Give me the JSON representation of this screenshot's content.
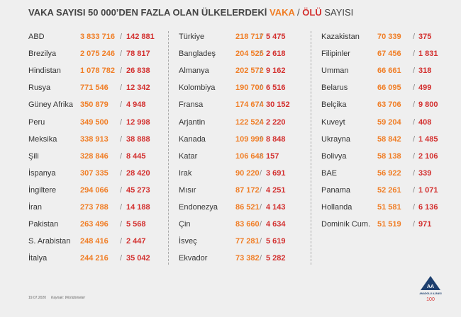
{
  "header": {
    "title": "VAKA SAYISI 50 000’DEN FAZLA OLAN ÜLKELERDEKİ",
    "cases_word": "VAKA",
    "slash": "/",
    "deaths_word": "ÖLÜ",
    "suffix": "SAYISI"
  },
  "table": {
    "separator": "/",
    "columns": [
      [
        [
          "ABD",
          "3 833 716",
          "142 881"
        ],
        [
          "Brezilya",
          "2 075 246",
          "78 817"
        ],
        [
          "Hindistan",
          "1 078 782",
          "26 838"
        ],
        [
          "Rusya",
          "771 546",
          "12 342"
        ],
        [
          "Güney Afrika",
          "350 879",
          "4 948"
        ],
        [
          "Peru",
          "349 500",
          "12 998"
        ],
        [
          "Meksika",
          "338 913",
          "38 888"
        ],
        [
          "Şili",
          "328 846",
          "8 445"
        ],
        [
          "İspanya",
          "307 335",
          "28 420"
        ],
        [
          "İngiltere",
          "294 066",
          "45 273"
        ],
        [
          "İran",
          "273 788",
          "14 188"
        ],
        [
          "Pakistan",
          "263 496",
          "5 568"
        ],
        [
          "S. Arabistan",
          "248 416",
          "2 447"
        ],
        [
          "İtalya",
          "244 216",
          "35 042"
        ]
      ],
      [
        [
          "Türkiye",
          "218 717",
          "5 475"
        ],
        [
          "Bangladeş",
          "204 525",
          "2 618"
        ],
        [
          "Almanya",
          "202 572",
          "9 162"
        ],
        [
          "Kolombiya",
          "190 700",
          "6 516"
        ],
        [
          "Fransa",
          "174 674",
          "30 152"
        ],
        [
          "Arjantin",
          "122 524",
          "2 220"
        ],
        [
          "Kanada",
          "109 999",
          "8 848"
        ],
        [
          "Katar",
          "106 648",
          "157"
        ],
        [
          "Irak",
          "90 220",
          "3 691"
        ],
        [
          "Mısır",
          "87 172",
          "4 251"
        ],
        [
          "Endonezya",
          "86 521",
          "4 143"
        ],
        [
          "Çin",
          "83 660",
          "4 634"
        ],
        [
          "İsveç",
          "77 281",
          "5 619"
        ],
        [
          "Ekvador",
          "73 382",
          "5 282"
        ]
      ],
      [
        [
          "Kazakistan",
          "70 339",
          "375"
        ],
        [
          "Filipinler",
          "67 456",
          "1 831"
        ],
        [
          "Umman",
          "66 661",
          "318"
        ],
        [
          "Belarus",
          "66 095",
          "499"
        ],
        [
          "Belçika",
          "63 706",
          "9 800"
        ],
        [
          "Kuveyt",
          "59 204",
          "408"
        ],
        [
          "Ukrayna",
          "58 842",
          "1 485"
        ],
        [
          "Bolivya",
          "58 138",
          "2 106"
        ],
        [
          "BAE",
          "56 922",
          "339"
        ],
        [
          "Panama",
          "52 261",
          "1 071"
        ],
        [
          "Hollanda",
          "51 581",
          "6 136"
        ],
        [
          "Dominik Cum.",
          "51 519",
          "971"
        ]
      ]
    ]
  },
  "footer": {
    "date": "19.07.2020",
    "source": "Kaynak: Worldometer",
    "logo": "AA",
    "agency": "ANADOLU AJANSI",
    "anniversary": "100"
  }
}
